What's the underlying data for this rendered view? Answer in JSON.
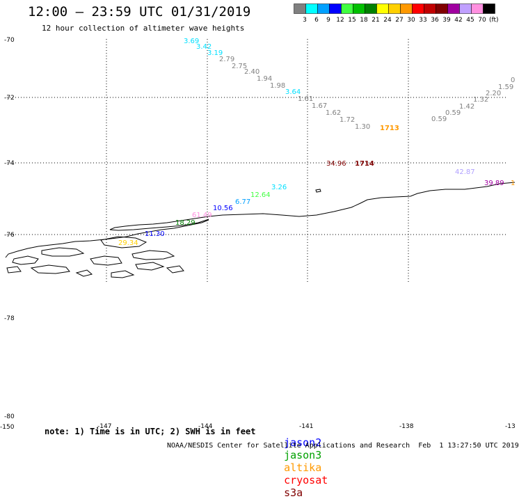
{
  "header": {
    "title": "12:00 — 23:59 UTC 01/31/2019",
    "subtitle": "12 hour collection of altimeter wave heights"
  },
  "legend": {
    "unit": "(ft)",
    "items": [
      {
        "label": "3",
        "color": "#808080"
      },
      {
        "label": "6",
        "color": "#00ffff"
      },
      {
        "label": "9",
        "color": "#00a0ff"
      },
      {
        "label": "12",
        "color": "#0000ff"
      },
      {
        "label": "15",
        "color": "#40ff40"
      },
      {
        "label": "18",
        "color": "#00c000"
      },
      {
        "label": "21",
        "color": "#008000"
      },
      {
        "label": "24",
        "color": "#ffff00"
      },
      {
        "label": "27",
        "color": "#ffd000"
      },
      {
        "label": "30",
        "color": "#ff9900"
      },
      {
        "label": "33",
        "color": "#ff0000"
      },
      {
        "label": "36",
        "color": "#c00000"
      },
      {
        "label": "39",
        "color": "#800000"
      },
      {
        "label": "42",
        "color": "#a000a0"
      },
      {
        "label": "45",
        "color": "#c0a0ff"
      },
      {
        "label": "70",
        "color": "#ff90e0"
      },
      {
        "label": "",
        "color": "#000000"
      }
    ]
  },
  "axes": {
    "lat_labels": [
      "-70",
      "-72",
      "-74",
      "-76",
      "-78",
      "-80"
    ],
    "lon_labels": [
      "-150",
      "-147",
      "-144",
      "-141",
      "-138",
      "-13"
    ]
  },
  "observations": [
    {
      "text": "3.69",
      "color": "#00e0ff"
    },
    {
      "text": "3.42",
      "color": "#00e0ff"
    },
    {
      "text": "3.19",
      "color": "#00e0ff"
    },
    {
      "text": "2.79",
      "color": "#808080"
    },
    {
      "text": "2.75",
      "color": "#808080"
    },
    {
      "text": "2.40",
      "color": "#808080"
    },
    {
      "text": "1.94",
      "color": "#808080"
    },
    {
      "text": "1.98",
      "color": "#808080"
    },
    {
      "text": "3.64",
      "color": "#00e0ff"
    },
    {
      "text": "1.61",
      "color": "#808080"
    },
    {
      "text": "1.67",
      "color": "#808080"
    },
    {
      "text": "1.62",
      "color": "#808080"
    },
    {
      "text": "1.72",
      "color": "#808080"
    },
    {
      "text": "1.30",
      "color": "#808080"
    },
    {
      "text": "1713",
      "color": "#ff9900"
    },
    {
      "text": "0.59",
      "color": "#808080"
    },
    {
      "text": "0.59",
      "color": "#808080"
    },
    {
      "text": "1.42",
      "color": "#808080"
    },
    {
      "text": "1.32",
      "color": "#808080"
    },
    {
      "text": "2.20",
      "color": "#808080"
    },
    {
      "text": "1.59",
      "color": "#808080"
    },
    {
      "text": "0",
      "color": "#808080"
    },
    {
      "text": "34.96",
      "color": "#800000"
    },
    {
      "text": "1714",
      "color": "#800000"
    },
    {
      "text": "42.87",
      "color": "#b0a0ff"
    },
    {
      "text": "39.89",
      "color": "#a000a0"
    },
    {
      "text": "1",
      "color": "#ff9900"
    },
    {
      "text": "3.26",
      "color": "#00e0ff"
    },
    {
      "text": "12.64",
      "color": "#40ff40"
    },
    {
      "text": "6.77",
      "color": "#00a0ff"
    },
    {
      "text": "10.56",
      "color": "#0000ff"
    },
    {
      "text": "61.49",
      "color": "#ff90e0"
    },
    {
      "text": "18.29",
      "color": "#008000"
    },
    {
      "text": "11.30",
      "color": "#0000ff"
    },
    {
      "text": "29.34",
      "color": "#ffd000"
    }
  ],
  "footer": {
    "note": "note: 1) Time is in UTC; 2) SWH is in feet",
    "satellites": [
      {
        "name": "jason2",
        "color": "#0000ff"
      },
      {
        "name": "jason3",
        "color": "#00a000"
      },
      {
        "name": "altika",
        "color": "#ff9900"
      },
      {
        "name": "cryosat",
        "color": "#ff0000"
      },
      {
        "name": "s3a",
        "color": "#800000"
      }
    ],
    "credit": "NOAA/NESDIS Center for Satellite Applications and Research",
    "timestamp": "Feb  1 13:27:50 UTC 2019"
  }
}
